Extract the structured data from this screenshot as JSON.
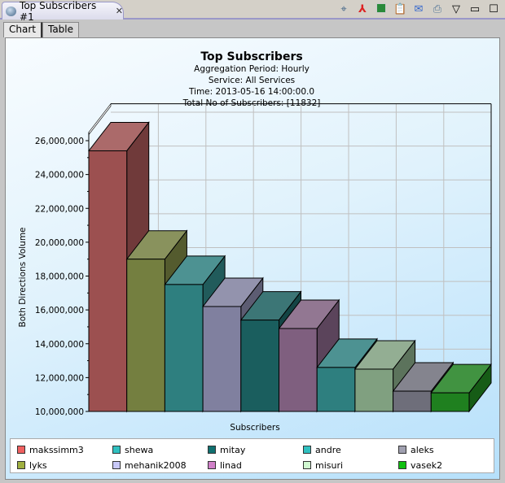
{
  "window": {
    "tab_title": "Top Subscribers #1",
    "toolbar": [
      "zoom-icon",
      "pdf-icon",
      "excel-icon",
      "clipboard-icon",
      "email-icon",
      "print-icon",
      "view-menu-icon",
      "minimize-icon",
      "maximize-icon"
    ]
  },
  "tabs": [
    {
      "label": "Chart",
      "active": true
    },
    {
      "label": "Table",
      "active": false
    }
  ],
  "chart_data": {
    "type": "bar",
    "style": "3d",
    "title": "Top Subscribers",
    "subtitles": [
      "Aggregation Period: Hourly",
      "Service: All Services",
      "Time: 2013-05-16 14:00:00.0",
      "Total No of Subscribers: [11832]"
    ],
    "xlabel": "Subscribers",
    "ylabel": "Both Directions Volume",
    "ylim": [
      10000000,
      26500000
    ],
    "yticks": [
      "10,000,000",
      "12,000,000",
      "14,000,000",
      "16,000,000",
      "18,000,000",
      "20,000,000",
      "22,000,000",
      "24,000,000",
      "26,000,000"
    ],
    "grid": true,
    "legend_position": "bottom",
    "series": [
      {
        "name": "makssimm3",
        "value": 25400000,
        "color": "#f06060",
        "bar_color": "#9c5050"
      },
      {
        "name": "lyks",
        "value": 19000000,
        "color": "#a0b040",
        "bar_color": "#747f40"
      },
      {
        "name": "shewa",
        "value": 17500000,
        "color": "#30c0c0",
        "bar_color": "#2e7f7f"
      },
      {
        "name": "mehanik2008",
        "value": 16200000,
        "color": "#c8c8f8",
        "bar_color": "#80809f"
      },
      {
        "name": "mitay",
        "value": 15400000,
        "color": "#107070",
        "bar_color": "#1a5e5e"
      },
      {
        "name": "linad",
        "value": 14900000,
        "color": "#d080c8",
        "bar_color": "#7f5f7f"
      },
      {
        "name": "andre",
        "value": 12600000,
        "color": "#30c0c0",
        "bar_color": "#2e7f7f"
      },
      {
        "name": "misuri",
        "value": 12500000,
        "color": "#d0f8d0",
        "bar_color": "#80a080"
      },
      {
        "name": "aleks",
        "value": 11200000,
        "color": "#a0a0b0",
        "bar_color": "#6e6e7a"
      },
      {
        "name": "vasek2",
        "value": 11100000,
        "color": "#10c010",
        "bar_color": "#1f801f"
      }
    ],
    "legend_order": [
      "makssimm3",
      "shewa",
      "mitay",
      "andre",
      "aleks",
      "lyks",
      "mehanik2008",
      "linad",
      "misuri",
      "vasek2"
    ]
  }
}
